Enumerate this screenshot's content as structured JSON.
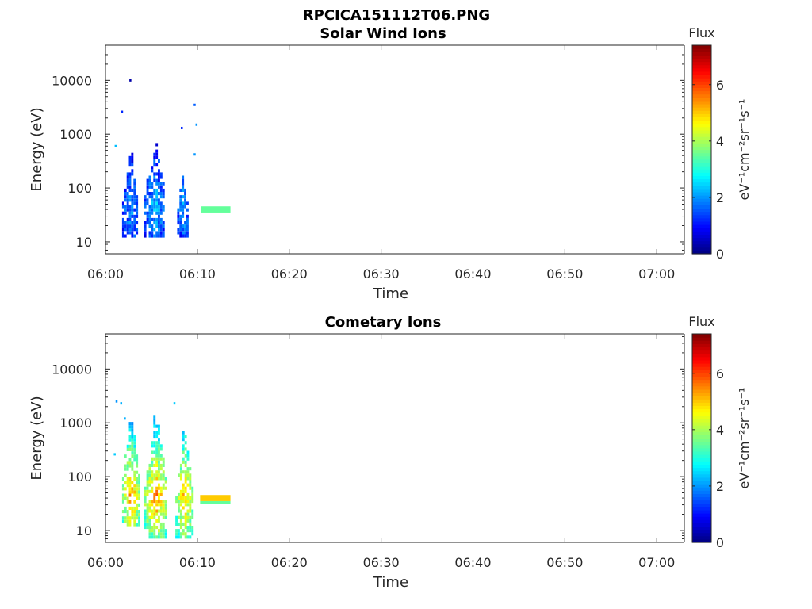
{
  "figure_title": "RPCICA151112T06.PNG",
  "chart_data": [
    {
      "type": "heatmap",
      "title": "Solar Wind Ions",
      "xlabel": "Time",
      "ylabel": "Energy (eV)",
      "x_ticks": [
        "06:00",
        "06:10",
        "06:20",
        "06:30",
        "06:40",
        "06:50",
        "07:00"
      ],
      "x_range": [
        "06:00",
        "07:03"
      ],
      "y_scale": "log",
      "y_ticks": [
        "10",
        "100",
        "1000",
        "10000"
      ],
      "y_range": [
        6,
        45000
      ],
      "colorbar": {
        "title": "Flux",
        "label": "eV⁻¹cm⁻²sr⁻¹s⁻¹",
        "ticks": [
          "0",
          "2",
          "4",
          "6"
        ],
        "range": [
          0,
          7.4
        ],
        "colormap": "jet"
      },
      "bursts": [
        {
          "t_start": 1.8,
          "t_end": 3.5,
          "e_low": 12,
          "e_high": 700,
          "flux_core": 2.0,
          "flux_edge": 0.6
        },
        {
          "t_start": 4.2,
          "t_end": 6.4,
          "e_low": 12,
          "e_high": 1700,
          "flux_core": 2.4,
          "flux_edge": 0.6
        },
        {
          "t_start": 7.8,
          "t_end": 9.0,
          "e_low": 12,
          "e_high": 320,
          "flux_core": 2.2,
          "flux_edge": 0.6
        }
      ],
      "band": {
        "t_start": 10.4,
        "t_end": 13.6,
        "energy": 40,
        "flux": 3.5
      },
      "sparse_points": [
        {
          "t": 2.6,
          "e": 10000,
          "flux": 0.3
        },
        {
          "t": 1.7,
          "e": 2600,
          "flux": 1.2
        },
        {
          "t": 9.6,
          "e": 3500,
          "flux": 1.6
        },
        {
          "t": 9.8,
          "e": 1500,
          "flux": 2.0
        },
        {
          "t": 9.6,
          "e": 420,
          "flux": 2.0
        },
        {
          "t": 8.2,
          "e": 1300,
          "flux": 1.2
        },
        {
          "t": 1.0,
          "e": 600,
          "flux": 2.3
        }
      ]
    },
    {
      "type": "heatmap",
      "title": "Cometary Ions",
      "xlabel": "Time",
      "ylabel": "Energy (eV)",
      "x_ticks": [
        "06:00",
        "06:10",
        "06:20",
        "06:30",
        "06:40",
        "06:50",
        "07:00"
      ],
      "x_range": [
        "06:00",
        "07:03"
      ],
      "y_scale": "log",
      "y_ticks": [
        "10",
        "100",
        "1000",
        "10000"
      ],
      "y_range": [
        6,
        45000
      ],
      "colorbar": {
        "title": "Flux",
        "label": "eV⁻¹cm⁻²sr⁻¹s⁻¹",
        "ticks": [
          "0",
          "2",
          "4",
          "6"
        ],
        "range": [
          0,
          7.4
        ],
        "colormap": "jet"
      },
      "bursts": [
        {
          "t_start": 1.8,
          "t_end": 3.6,
          "e_low": 12,
          "e_high": 3500,
          "flux_core": 5.5,
          "flux_edge": 2.2
        },
        {
          "t_start": 4.2,
          "t_end": 6.6,
          "e_low": 7,
          "e_high": 3800,
          "flux_core": 5.6,
          "flux_edge": 2.2
        },
        {
          "t_start": 7.6,
          "t_end": 9.4,
          "e_low": 7,
          "e_high": 1800,
          "flux_core": 5.2,
          "flux_edge": 2.2
        }
      ],
      "band": {
        "t_start": 10.3,
        "t_end": 13.6,
        "energy": 40,
        "flux": 5.0
      },
      "sparse_points": [
        {
          "t": 1.1,
          "e": 2500,
          "flux": 2.0
        },
        {
          "t": 1.6,
          "e": 2300,
          "flux": 2.2
        },
        {
          "t": 7.4,
          "e": 2300,
          "flux": 2.4
        },
        {
          "t": 2.0,
          "e": 1200,
          "flux": 2.2
        },
        {
          "t": 0.9,
          "e": 260,
          "flux": 2.4
        }
      ]
    }
  ]
}
